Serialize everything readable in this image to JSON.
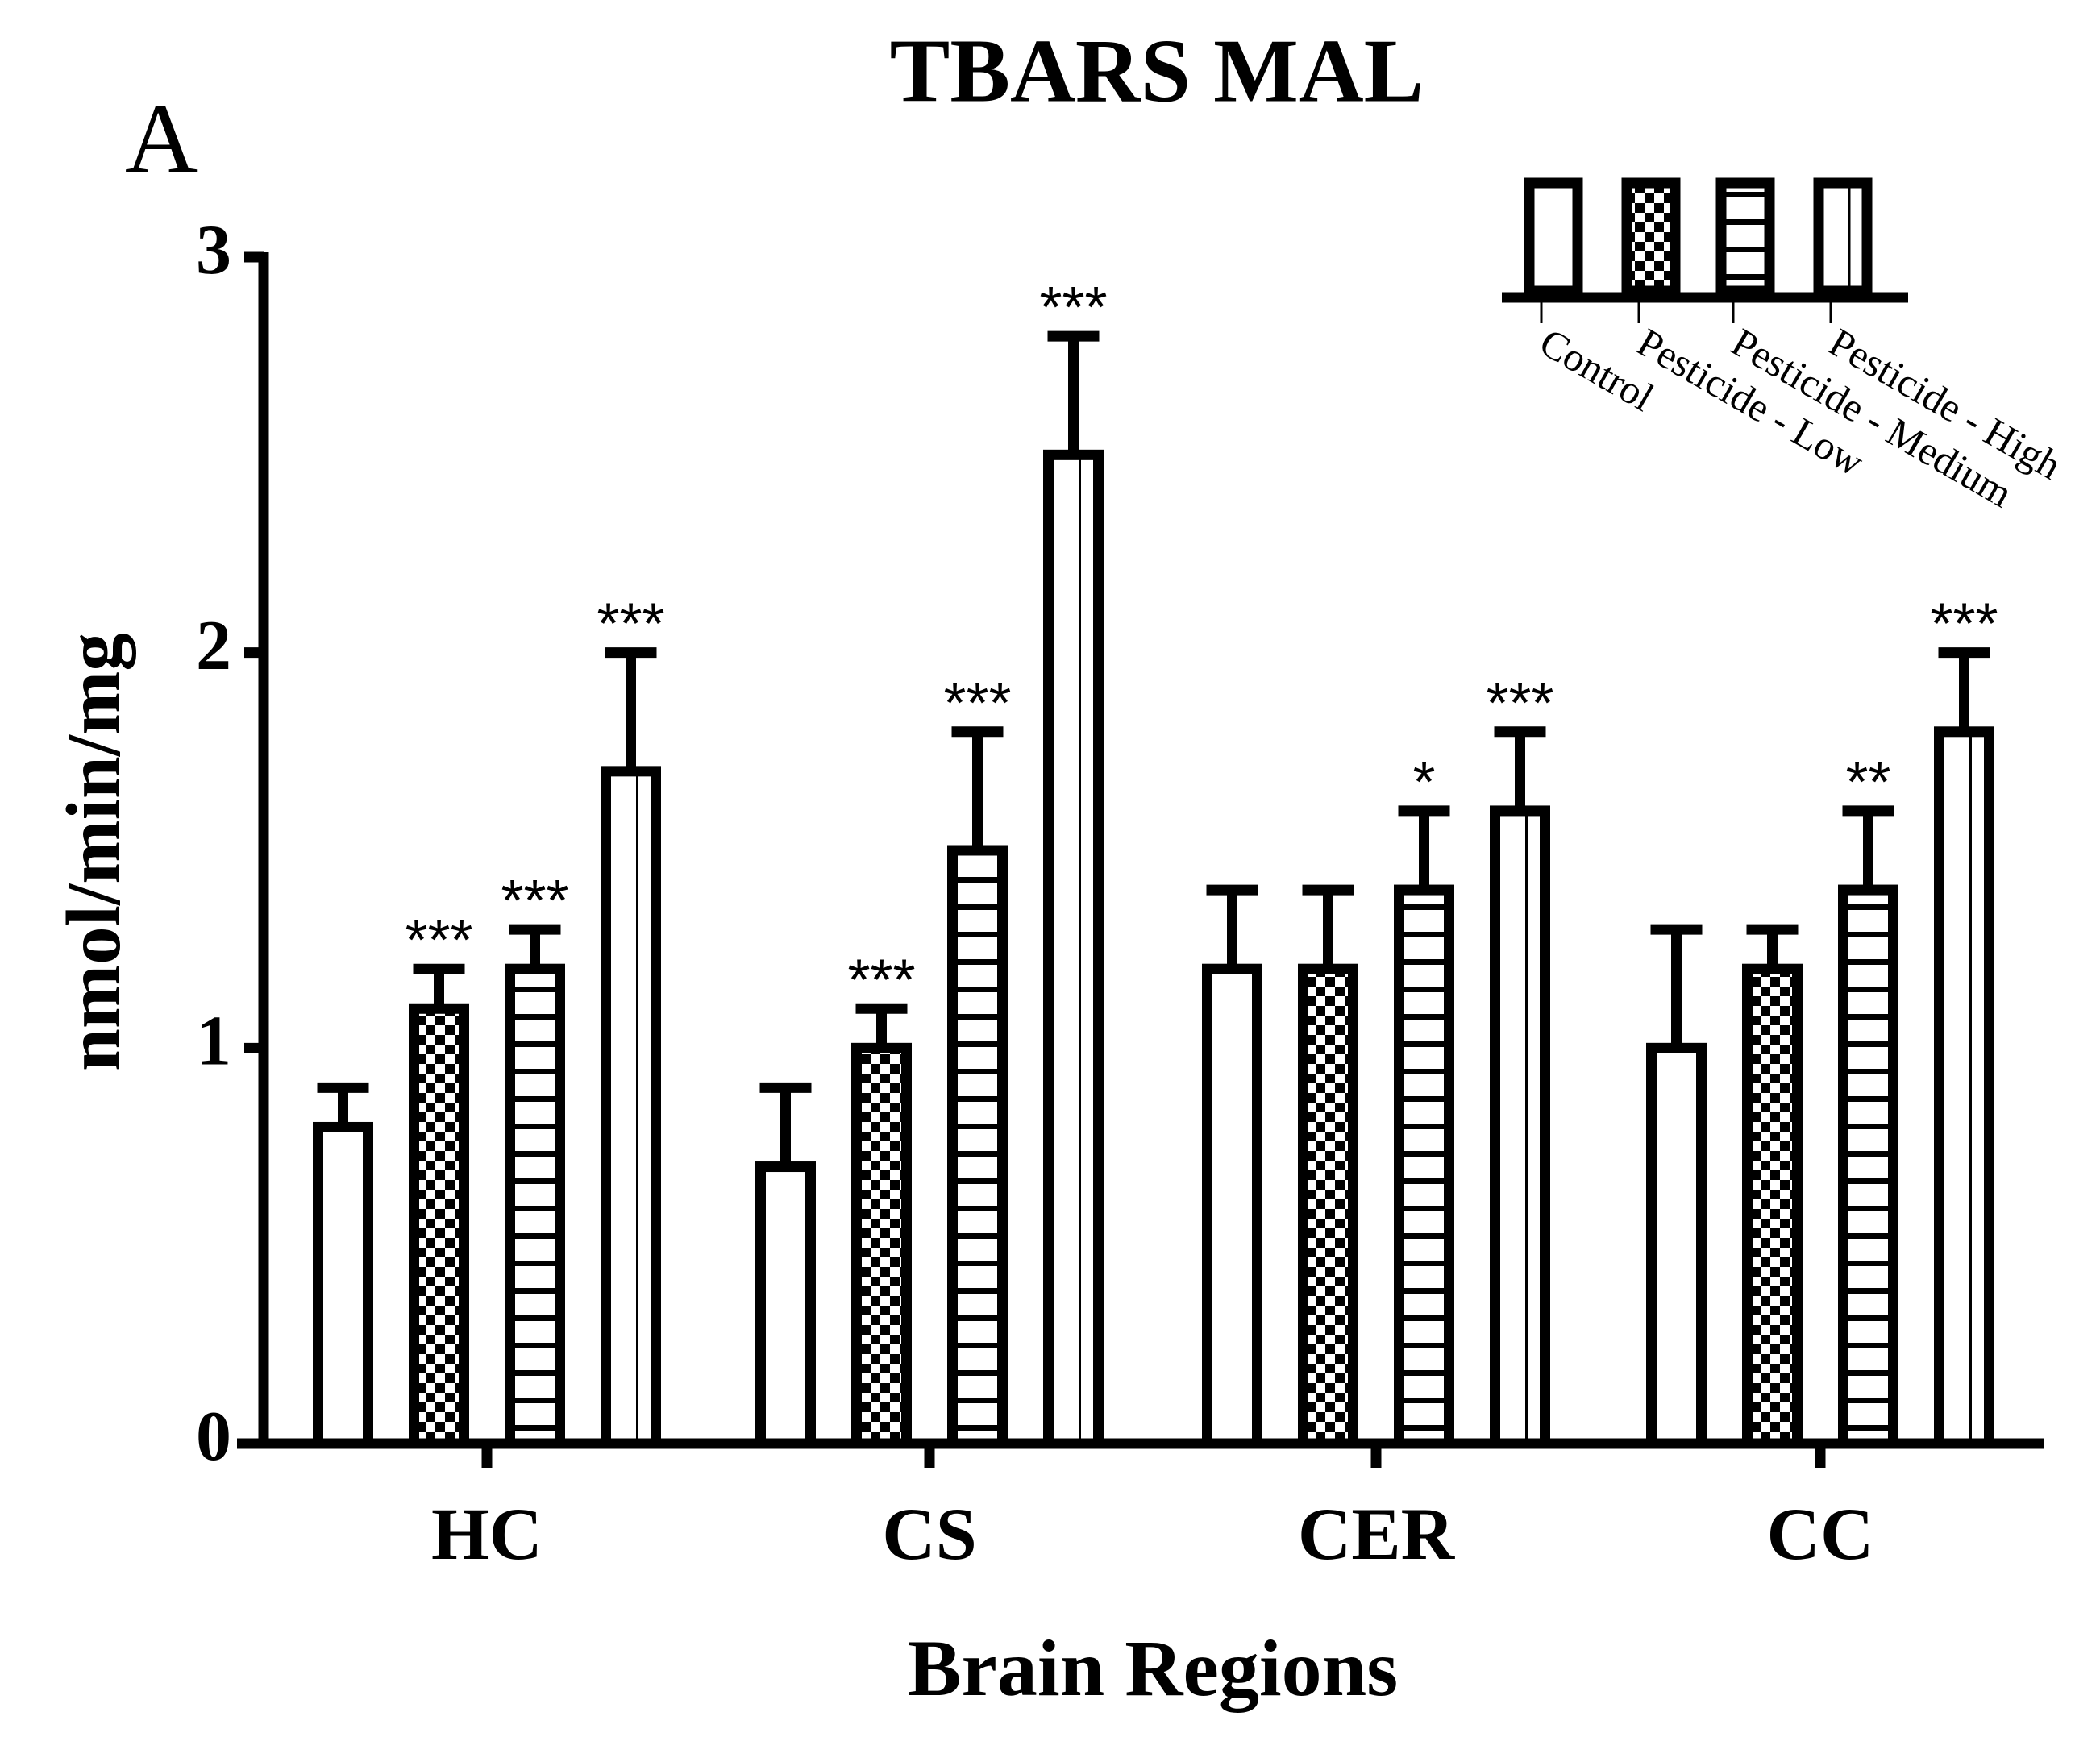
{
  "chart_data": {
    "type": "bar",
    "title": "TBARS MAL",
    "panel_label": "A",
    "x_label": "Brain Regions",
    "y_label": "nmol/min/mg",
    "categories": [
      "HC",
      "CS",
      "CER",
      "CC"
    ],
    "ylim": [
      0,
      3
    ],
    "yticks": [
      0,
      1,
      2,
      3
    ],
    "legend_position": "top-right",
    "series": [
      {
        "name": "Control",
        "color": "#000000",
        "pattern": "none",
        "values": [
          0.8,
          0.7,
          1.2,
          1.0
        ],
        "errors": [
          0.1,
          0.2,
          0.2,
          0.3
        ]
      },
      {
        "name": "Pesticide - Low",
        "color": "#000000",
        "pattern": "checker",
        "values": [
          1.1,
          1.0,
          1.2,
          1.2
        ],
        "errors": [
          0.1,
          0.1,
          0.2,
          0.1
        ],
        "annotations": [
          "***",
          "***",
          null,
          null
        ]
      },
      {
        "name": "Pesticide - Medium",
        "color": "#000000",
        "pattern": "hstripe",
        "values": [
          1.2,
          1.5,
          1.4,
          1.4
        ],
        "errors": [
          0.1,
          0.3,
          0.2,
          0.2
        ],
        "annotations": [
          "***",
          "***",
          "*",
          "**"
        ]
      },
      {
        "name": "Pesticide - High",
        "color": "#000000",
        "pattern": "vline",
        "values": [
          1.7,
          2.5,
          1.6,
          1.8
        ],
        "errors": [
          0.3,
          0.3,
          0.2,
          0.2
        ],
        "annotations": [
          "***",
          "***",
          "***",
          "***"
        ]
      }
    ]
  }
}
